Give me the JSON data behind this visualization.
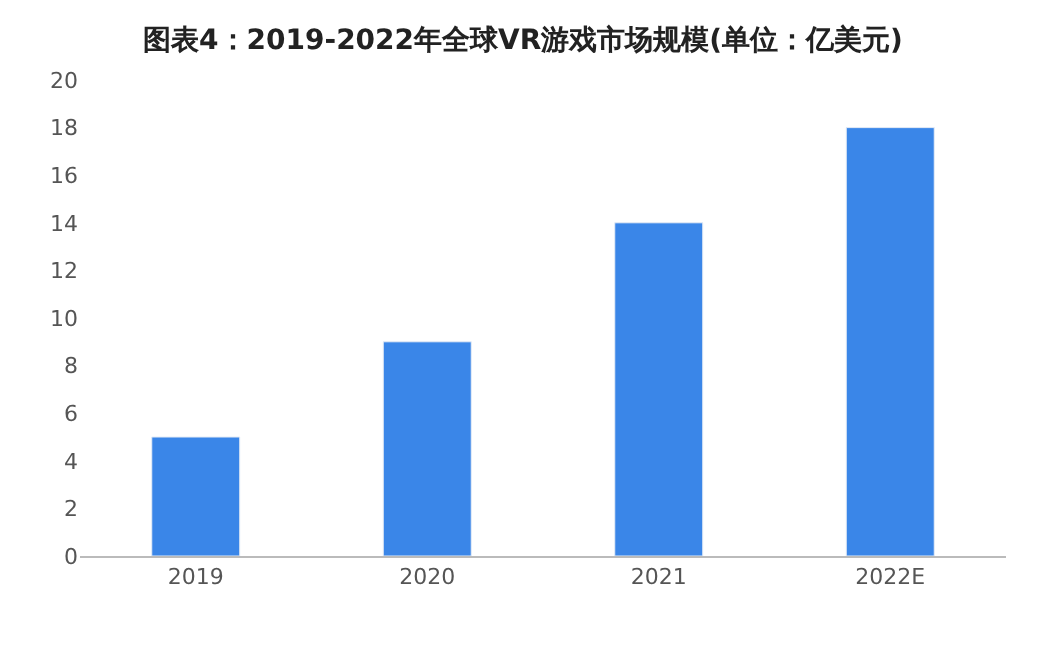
{
  "chart_data": {
    "type": "bar",
    "title": "图表4：2019-2022年全球VR游戏市场规模(单位：亿美元)",
    "categories": [
      "2019",
      "2020",
      "2021",
      "2022E"
    ],
    "values": [
      5,
      9,
      14,
      18
    ],
    "color": "#3a86e8",
    "ylim": [
      0,
      20
    ],
    "yticks": [
      0,
      2,
      4,
      6,
      8,
      10,
      12,
      14,
      16,
      18,
      20
    ],
    "grid": false
  }
}
